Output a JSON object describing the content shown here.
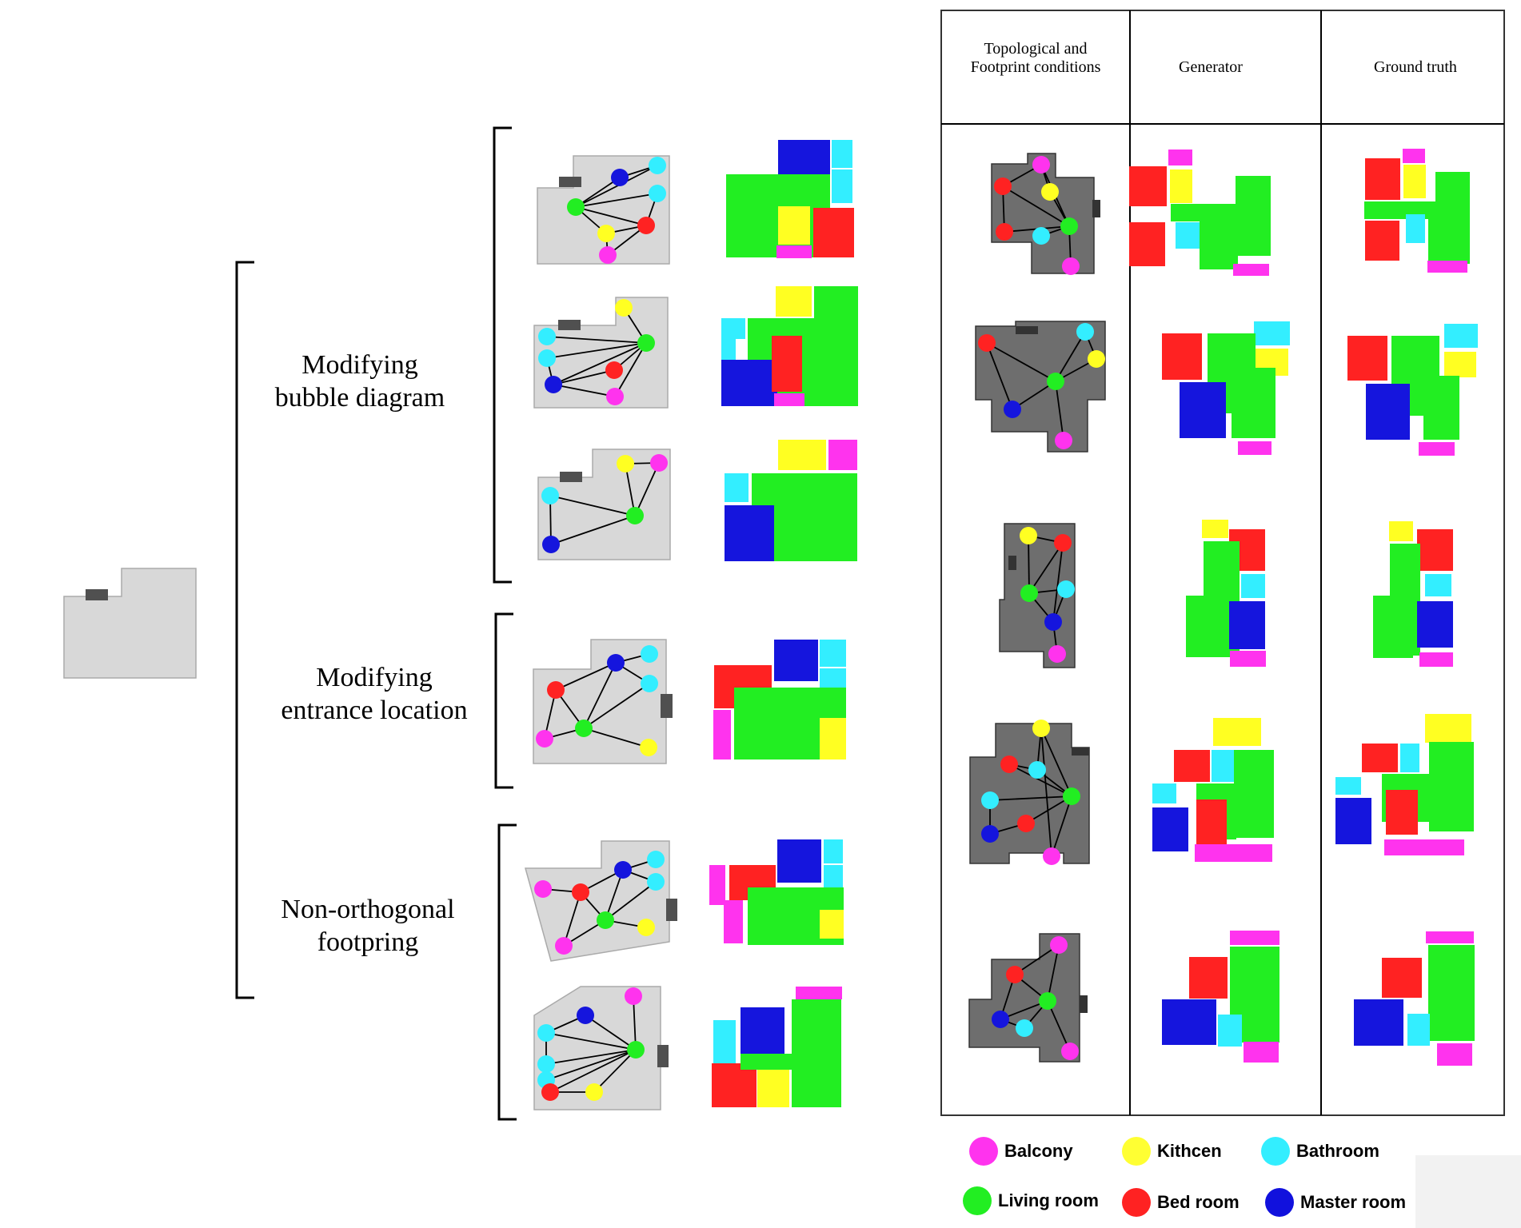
{
  "left_groups": [
    {
      "line1": "Modifying",
      "line2": "bubble diagram"
    },
    {
      "line1": "Modifying",
      "line2": "entrance location"
    },
    {
      "line1": "Non-orthogonal",
      "line2": "footpring"
    }
  ],
  "table_headers": [
    "Topological and Footprint conditions",
    "Generator",
    "Ground truth"
  ],
  "legend": [
    {
      "label": "Balcony",
      "color": "#ff33ee"
    },
    {
      "label": "Kithcen",
      "color": "#ffff33"
    },
    {
      "label": "Bathroom",
      "color": "#33eeff"
    },
    {
      "label": "Living room",
      "color": "#22ee22"
    },
    {
      "label": "Bed room",
      "color": "#ff2222"
    },
    {
      "label": "Master room",
      "color": "#1111dd"
    }
  ],
  "colors": {
    "balcony": "#ff33ee",
    "kitchen": "#ffff22",
    "bathroom": "#33eeff",
    "living": "#22ee22",
    "bedroom": "#ff2222",
    "master": "#1515dd",
    "footprint_light": "#d8d8d8",
    "footprint_dark": "#6e6e6e",
    "entrance": "#505050"
  }
}
